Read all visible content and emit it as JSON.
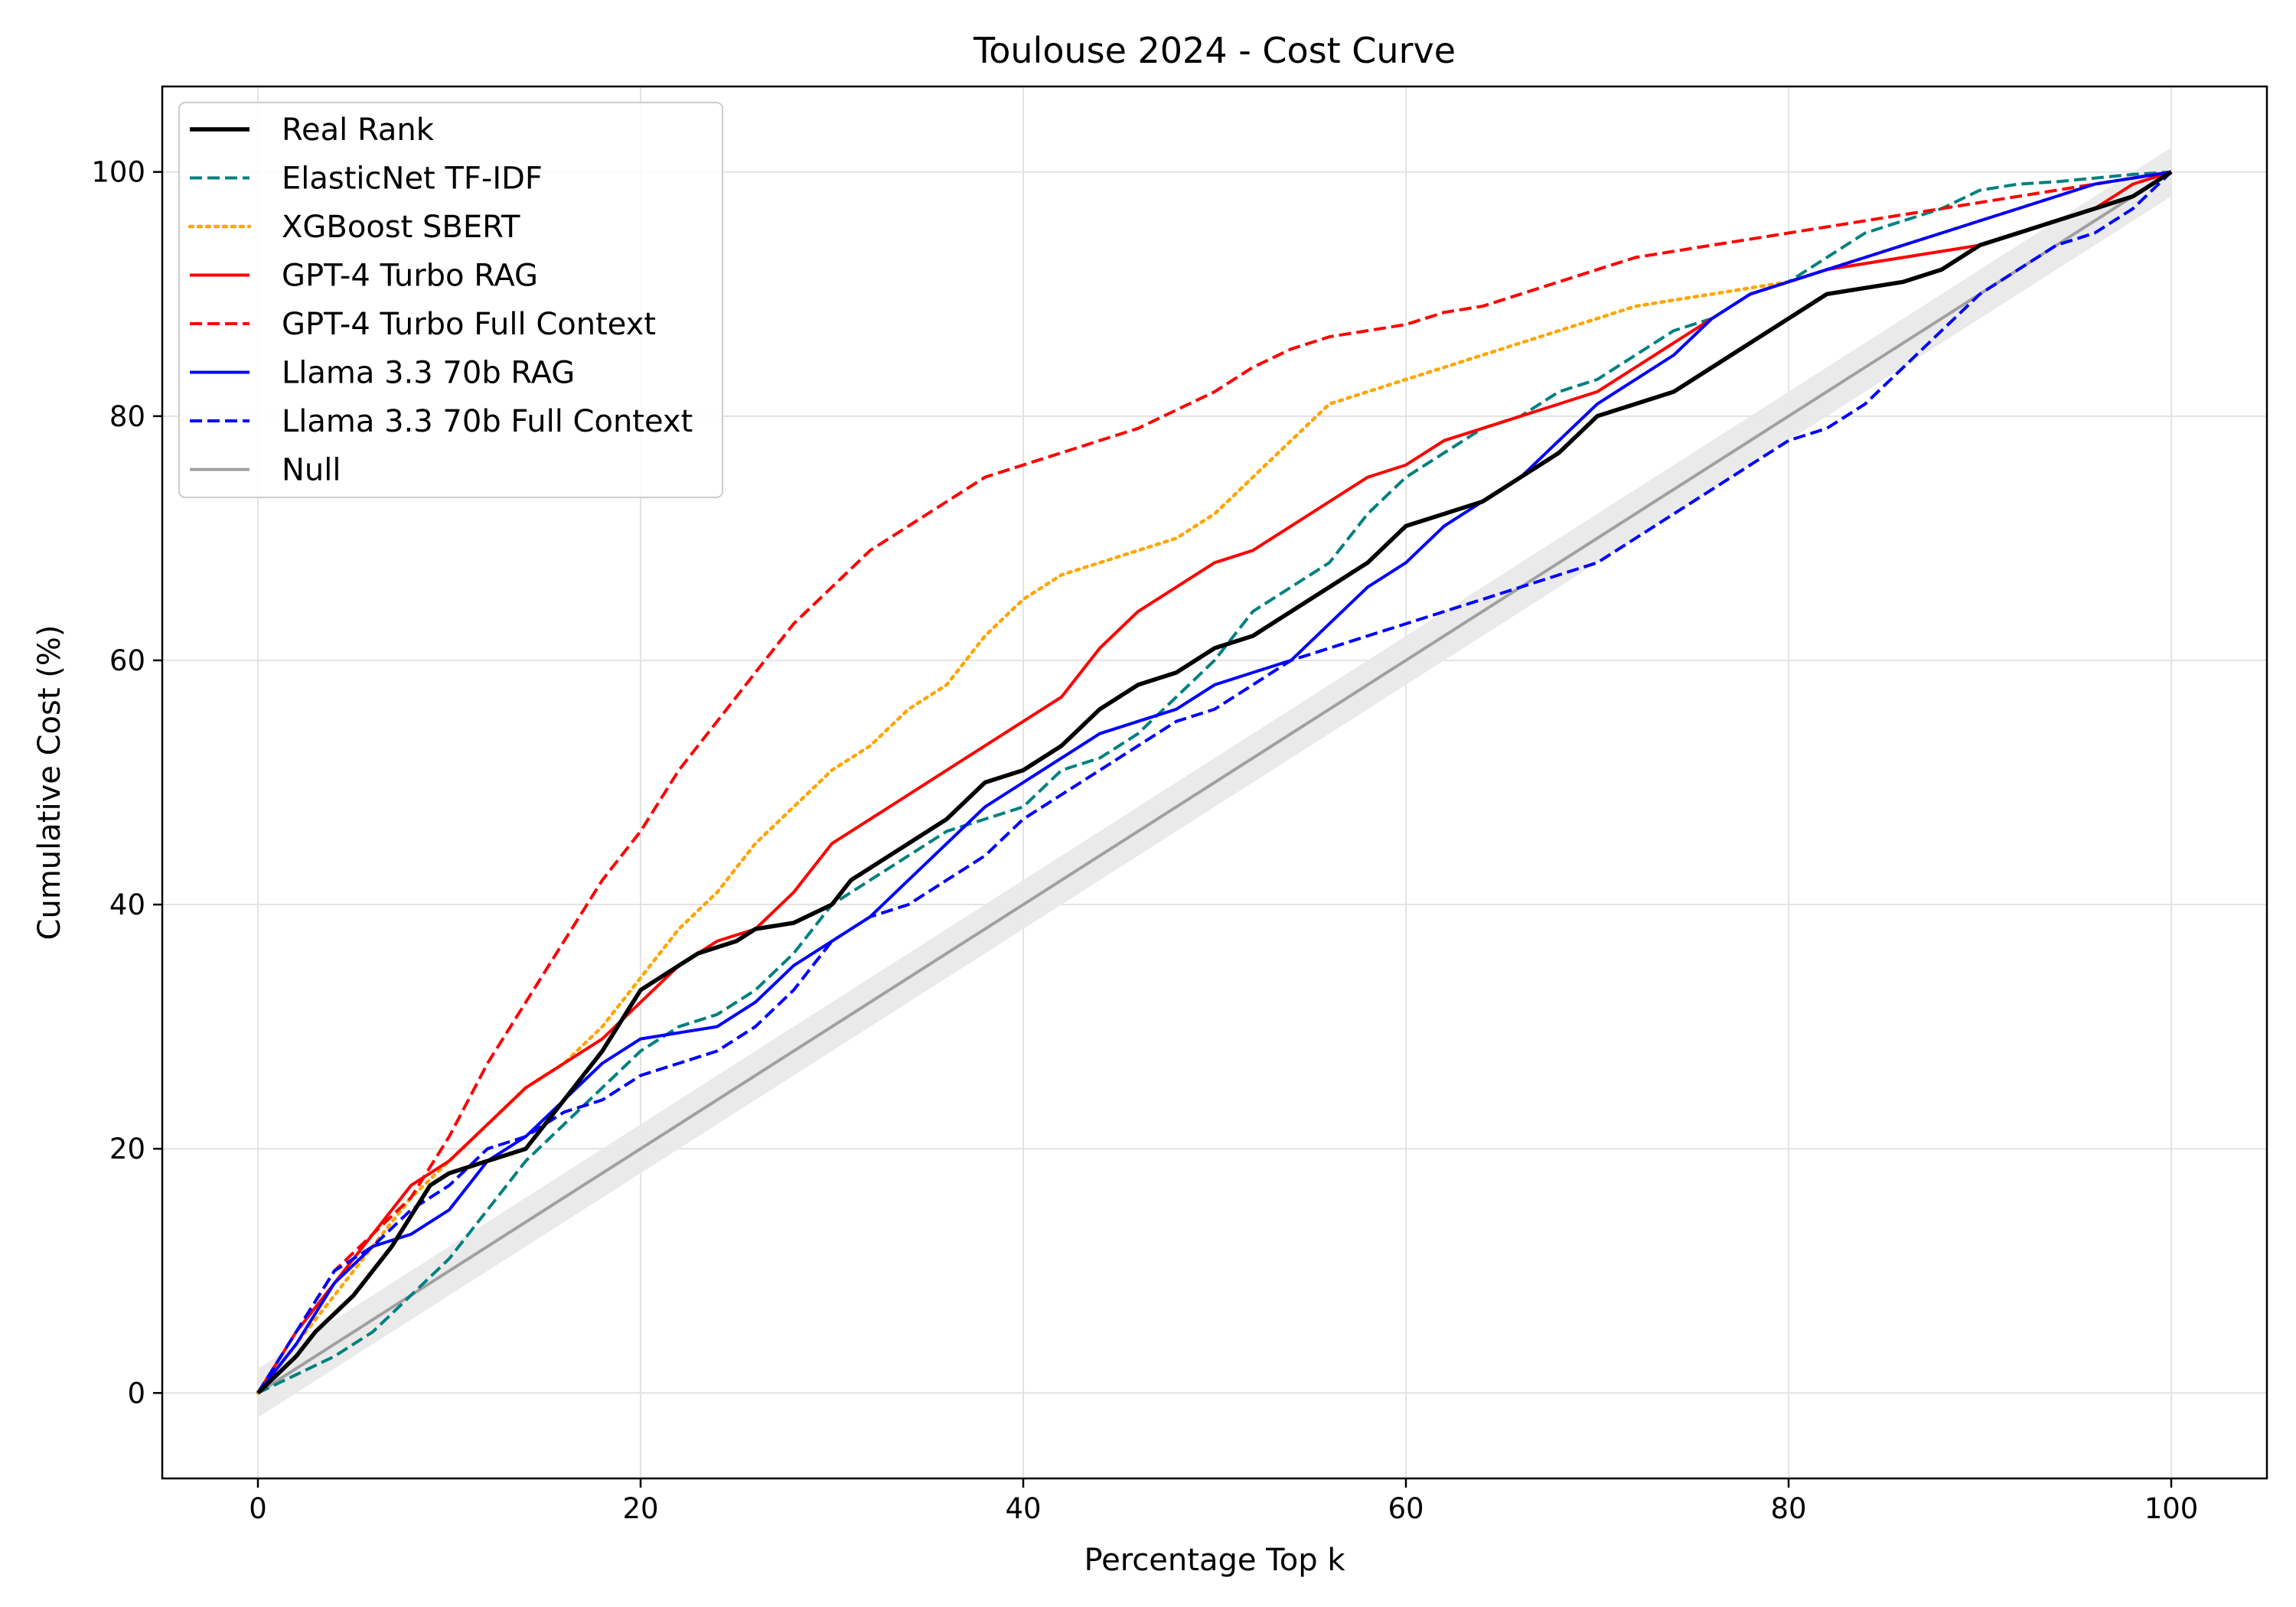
{
  "chart_data": {
    "type": "line",
    "title": "Toulouse 2024 - Cost Curve",
    "xlabel": "Percentage Top k",
    "ylabel": "Cumulative Cost (%)",
    "xlim": [
      -5,
      105
    ],
    "ylim": [
      -7,
      107
    ],
    "xticks": [
      0,
      20,
      40,
      60,
      80,
      100
    ],
    "yticks": [
      0,
      20,
      40,
      60,
      80,
      100
    ],
    "grid": true,
    "legend_position": "top-left",
    "null_band": {
      "name": "Null",
      "half_width": 2
    },
    "series": [
      {
        "name": "Real Rank",
        "color": "#000000",
        "style": "solid",
        "width": 5.5,
        "x": [
          0,
          2,
          3,
          5,
          7,
          9,
          10,
          12,
          14,
          16,
          18,
          20,
          21,
          22,
          23,
          25,
          26,
          28,
          30,
          31,
          32,
          34,
          36,
          38,
          40,
          42,
          44,
          46,
          48,
          50,
          52,
          54,
          56,
          58,
          60,
          62,
          64,
          66,
          68,
          70,
          72,
          74,
          76,
          78,
          80,
          82,
          84,
          86,
          88,
          90,
          92,
          94,
          96,
          98,
          100
        ],
        "y": [
          0,
          3,
          5,
          8,
          12,
          17,
          18,
          19,
          20,
          24,
          28,
          33,
          34,
          35,
          36,
          37,
          38,
          38.5,
          40,
          42,
          43,
          45,
          47,
          50,
          51,
          53,
          56,
          58,
          59,
          61,
          62,
          64,
          66,
          68,
          71,
          72,
          73,
          75,
          77,
          80,
          81,
          82,
          84,
          86,
          88,
          90,
          90.5,
          91,
          92,
          94,
          95,
          96,
          97,
          98,
          100
        ]
      },
      {
        "name": "ElasticNet TF-IDF",
        "color": "#008080",
        "style": "dashed",
        "width": 4,
        "x": [
          0,
          2,
          4,
          6,
          8,
          10,
          12,
          14,
          16,
          18,
          20,
          22,
          24,
          26,
          28,
          30,
          32,
          34,
          36,
          38,
          40,
          42,
          44,
          46,
          48,
          50,
          52,
          54,
          56,
          58,
          60,
          62,
          64,
          66,
          68,
          70,
          72,
          74,
          76,
          78,
          80,
          82,
          84,
          86,
          88,
          90,
          92,
          94,
          96,
          98,
          100
        ],
        "y": [
          0,
          1.5,
          3,
          5,
          8,
          11,
          15,
          19,
          22,
          25,
          28,
          30,
          31,
          33,
          36,
          40,
          42,
          44,
          46,
          47,
          48,
          51,
          52,
          54,
          57,
          60,
          64,
          66,
          68,
          72,
          75,
          77,
          79,
          80,
          82,
          83,
          85,
          87,
          88,
          90,
          91,
          93,
          95,
          96,
          97,
          98.5,
          99,
          99.2,
          99.5,
          99.8,
          100
        ]
      },
      {
        "name": "XGBoost SBERT",
        "color": "#ffa500",
        "style": "dotted",
        "width": 4.5,
        "x": [
          0,
          2,
          4,
          6,
          8,
          10,
          12,
          14,
          16,
          18,
          20,
          22,
          24,
          26,
          28,
          30,
          32,
          34,
          36,
          38,
          40,
          42,
          44,
          46,
          48,
          50,
          52,
          54,
          56,
          58,
          60,
          62,
          64,
          66,
          68,
          70,
          72,
          74,
          76,
          78,
          80,
          82,
          84,
          86,
          88,
          90,
          92,
          94,
          96,
          98,
          100
        ],
        "y": [
          0,
          4,
          8,
          12,
          16,
          19,
          22,
          25,
          27,
          30,
          34,
          38,
          41,
          45,
          48,
          51,
          53,
          56,
          58,
          62,
          65,
          67,
          68,
          69,
          70,
          72,
          75,
          78,
          81,
          82,
          83,
          84,
          85,
          86,
          87,
          88,
          89,
          89.5,
          90,
          90.5,
          91,
          92,
          93,
          94,
          95,
          96,
          97,
          98,
          99,
          99.5,
          100
        ]
      },
      {
        "name": "GPT-4 Turbo RAG",
        "color": "#ff0000",
        "style": "solid",
        "width": 4,
        "x": [
          0,
          2,
          4,
          6,
          8,
          10,
          12,
          14,
          16,
          18,
          20,
          22,
          24,
          26,
          28,
          30,
          32,
          34,
          36,
          38,
          40,
          42,
          44,
          46,
          48,
          50,
          52,
          54,
          56,
          58,
          60,
          62,
          64,
          66,
          68,
          70,
          72,
          74,
          76,
          78,
          80,
          82,
          84,
          86,
          88,
          90,
          92,
          94,
          96,
          98,
          100
        ],
        "y": [
          0,
          5,
          9,
          13,
          17,
          19,
          22,
          25,
          27,
          29,
          32,
          35,
          37,
          38,
          41,
          45,
          47,
          49,
          51,
          53,
          55,
          57,
          61,
          64,
          66,
          68,
          69,
          71,
          73,
          75,
          76,
          78,
          79,
          80,
          81,
          82,
          84,
          86,
          88,
          90,
          91,
          92,
          92.5,
          93,
          93.5,
          94,
          95,
          96,
          97,
          99,
          100
        ]
      },
      {
        "name": "GPT-4 Turbo Full Context",
        "color": "#ff0000",
        "style": "dashed",
        "width": 4,
        "x": [
          0,
          2,
          4,
          6,
          8,
          10,
          12,
          14,
          16,
          18,
          20,
          22,
          24,
          26,
          28,
          30,
          32,
          34,
          36,
          38,
          40,
          42,
          44,
          46,
          48,
          50,
          52,
          54,
          56,
          58,
          60,
          62,
          64,
          66,
          68,
          70,
          72,
          74,
          76,
          78,
          80,
          82,
          84,
          86,
          88,
          90,
          92,
          94,
          96,
          98,
          100
        ],
        "y": [
          0,
          5,
          10,
          13,
          16,
          21,
          27,
          32,
          37,
          42,
          46,
          51,
          55,
          59,
          63,
          66,
          69,
          71,
          73,
          75,
          76,
          77,
          78,
          79,
          80.5,
          82,
          84,
          85.5,
          86.5,
          87,
          87.5,
          88.5,
          89,
          90,
          91,
          92,
          93,
          93.5,
          94,
          94.5,
          95,
          95.5,
          96,
          96.5,
          97,
          97.5,
          98,
          98.5,
          99,
          99.5,
          100
        ]
      },
      {
        "name": "Llama 3.3 70b RAG",
        "color": "#0000ff",
        "style": "solid",
        "width": 4,
        "x": [
          0,
          2,
          4,
          6,
          8,
          10,
          12,
          14,
          16,
          18,
          20,
          22,
          24,
          26,
          28,
          30,
          32,
          34,
          36,
          38,
          40,
          42,
          44,
          46,
          48,
          50,
          52,
          54,
          56,
          58,
          60,
          62,
          64,
          66,
          68,
          70,
          72,
          74,
          76,
          78,
          80,
          82,
          84,
          86,
          88,
          90,
          92,
          94,
          96,
          98,
          100
        ],
        "y": [
          0,
          4,
          9,
          12,
          13,
          15,
          19,
          21,
          24,
          27,
          29,
          29.5,
          30,
          32,
          35,
          37,
          39,
          42,
          45,
          48,
          50,
          52,
          54,
          55,
          56,
          58,
          59,
          60,
          63,
          66,
          68,
          71,
          73,
          75,
          78,
          81,
          83,
          85,
          88,
          90,
          91,
          92,
          93,
          94,
          95,
          96,
          97,
          98,
          99,
          99.5,
          100
        ]
      },
      {
        "name": "Llama 3.3 70b Full Context",
        "color": "#0000ff",
        "style": "dashed",
        "width": 4,
        "x": [
          0,
          2,
          4,
          6,
          8,
          10,
          12,
          14,
          16,
          18,
          20,
          22,
          24,
          26,
          28,
          30,
          32,
          34,
          36,
          38,
          40,
          42,
          44,
          46,
          48,
          50,
          52,
          54,
          56,
          58,
          60,
          62,
          64,
          66,
          68,
          70,
          72,
          74,
          76,
          78,
          80,
          82,
          84,
          86,
          88,
          90,
          92,
          94,
          96,
          98,
          100
        ],
        "y": [
          0,
          5,
          10,
          12,
          15,
          17,
          20,
          21,
          23,
          24,
          26,
          27,
          28,
          30,
          33,
          37,
          39,
          40,
          42,
          44,
          47,
          49,
          51,
          53,
          55,
          56,
          58,
          60,
          61,
          62,
          63,
          64,
          65,
          66,
          67,
          68,
          70,
          72,
          74,
          76,
          78,
          79,
          81,
          84,
          87,
          90,
          92,
          94,
          95,
          97,
          100
        ]
      },
      {
        "name": "Null",
        "color": "#a0a0a0",
        "style": "solid",
        "width": 4,
        "x": [
          0,
          100
        ],
        "y": [
          0,
          100
        ]
      }
    ]
  }
}
